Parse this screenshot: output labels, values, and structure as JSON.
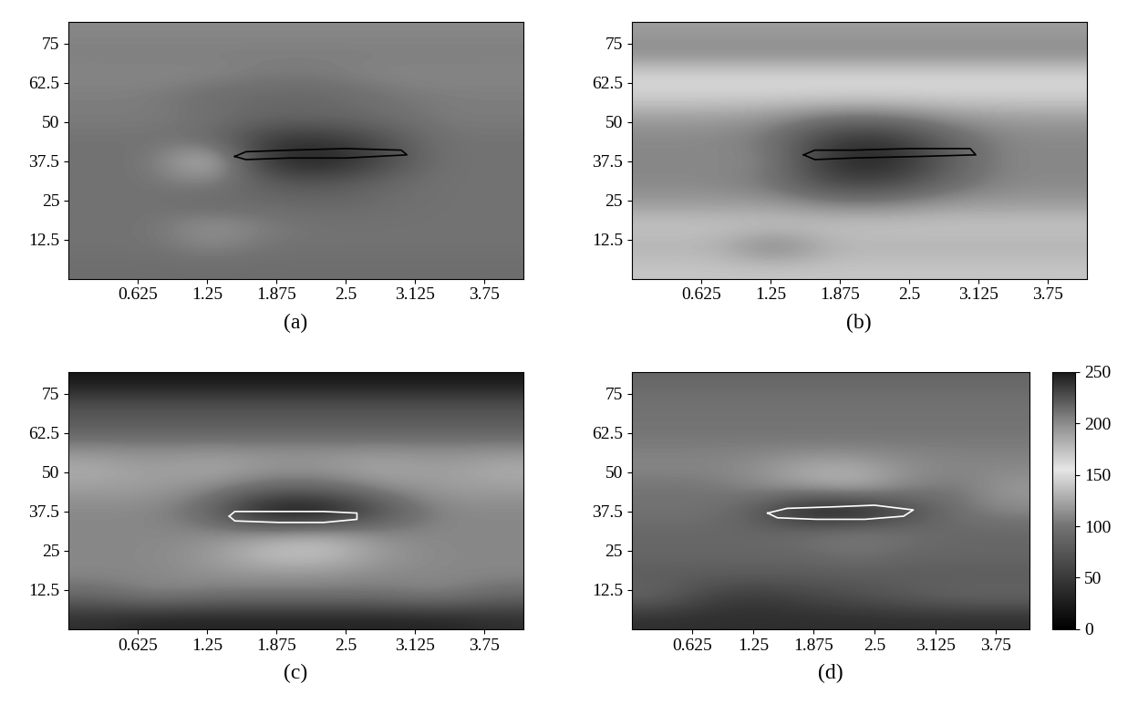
{
  "chart_data": [
    {
      "type": "heatmap",
      "label": "(a)",
      "xlim": [
        0,
        4.1
      ],
      "ylim": [
        0,
        82
      ],
      "xticks": [
        0.625,
        1.25,
        1.875,
        2.5,
        3.125,
        3.75
      ],
      "yticks": [
        12.5,
        25,
        37.5,
        50,
        62.5,
        75
      ],
      "cells": [
        [
          95,
          95,
          95,
          95,
          95,
          95,
          95,
          95
        ],
        [
          100,
          100,
          110,
          100,
          100,
          100,
          100,
          100
        ],
        [
          100,
          100,
          120,
          105,
          100,
          100,
          100,
          100
        ],
        [
          100,
          100,
          90,
          95,
          90,
          95,
          100,
          100
        ],
        [
          100,
          100,
          110,
          80,
          75,
          90,
          100,
          100
        ],
        [
          100,
          100,
          150,
          40,
          25,
          60,
          100,
          100
        ],
        [
          100,
          100,
          95,
          50,
          45,
          70,
          100,
          100
        ],
        [
          105,
          105,
          100,
          90,
          90,
          95,
          105,
          105
        ],
        [
          105,
          105,
          95,
          90,
          90,
          100,
          105,
          105
        ],
        [
          110,
          110,
          110,
          105,
          105,
          110,
          110,
          110
        ],
        [
          105,
          105,
          105,
          105,
          105,
          105,
          105,
          105
        ],
        [
          110,
          110,
          110,
          110,
          110,
          110,
          110,
          110
        ]
      ],
      "contour": {
        "color": "#000000",
        "x": [
          1.5,
          1.6,
          2.0,
          2.5,
          3.0,
          3.05,
          2.5,
          2.0,
          1.6,
          1.5
        ],
        "y": [
          39,
          40.5,
          41,
          41.5,
          41,
          39.5,
          38.5,
          38.5,
          38,
          39
        ]
      }
    },
    {
      "type": "heatmap",
      "label": "(b)",
      "xlim": [
        0,
        4.1
      ],
      "ylim": [
        0,
        82
      ],
      "xticks": [
        0.625,
        1.25,
        1.875,
        2.5,
        3.125,
        3.75
      ],
      "yticks": [
        12.5,
        25,
        37.5,
        50,
        62.5,
        75
      ],
      "cells": [
        [
          140,
          140,
          140,
          140,
          140,
          140,
          140,
          140
        ],
        [
          130,
          130,
          100,
          130,
          130,
          130,
          130,
          130
        ],
        [
          140,
          140,
          140,
          140,
          140,
          140,
          140,
          140
        ],
        [
          120,
          120,
          120,
          110,
          110,
          120,
          120,
          120
        ],
        [
          110,
          110,
          100,
          60,
          60,
          90,
          110,
          110
        ],
        [
          110,
          110,
          110,
          40,
          30,
          80,
          110,
          110
        ],
        [
          110,
          110,
          100,
          50,
          45,
          85,
          110,
          110
        ],
        [
          120,
          120,
          115,
          100,
          100,
          115,
          120,
          120
        ],
        [
          145,
          145,
          145,
          145,
          145,
          145,
          145,
          145
        ],
        [
          150,
          150,
          150,
          150,
          150,
          150,
          150,
          150
        ],
        [
          110,
          110,
          110,
          110,
          110,
          110,
          110,
          110
        ],
        [
          120,
          120,
          120,
          120,
          120,
          120,
          120,
          120
        ]
      ],
      "contour": {
        "color": "#000000",
        "x": [
          1.55,
          1.65,
          2.0,
          2.5,
          3.05,
          3.1,
          2.6,
          2.0,
          1.65,
          1.55
        ],
        "y": [
          39.5,
          41,
          41,
          41.5,
          41.5,
          39.5,
          39,
          38.5,
          38,
          39.5
        ]
      }
    },
    {
      "type": "heatmap",
      "label": "(c)",
      "xlim": [
        0,
        4.1
      ],
      "ylim": [
        0,
        82
      ],
      "xticks": [
        0.625,
        1.25,
        1.875,
        2.5,
        3.125,
        3.75
      ],
      "yticks": [
        12.5,
        25,
        37.5,
        50,
        62.5,
        75
      ],
      "cells": [
        [
          40,
          30,
          30,
          30,
          30,
          30,
          30,
          40
        ],
        [
          90,
          110,
          100,
          100,
          100,
          100,
          110,
          90
        ],
        [
          110,
          110,
          115,
          115,
          115,
          110,
          110,
          110
        ],
        [
          110,
          110,
          120,
          140,
          140,
          120,
          110,
          110
        ],
        [
          110,
          110,
          110,
          120,
          130,
          110,
          110,
          110
        ],
        [
          110,
          110,
          90,
          10,
          10,
          70,
          110,
          110
        ],
        [
          120,
          120,
          110,
          90,
          90,
          110,
          120,
          120
        ],
        [
          130,
          120,
          130,
          120,
          120,
          130,
          120,
          130
        ],
        [
          110,
          110,
          110,
          110,
          110,
          110,
          110,
          110
        ],
        [
          80,
          80,
          80,
          80,
          80,
          80,
          80,
          80
        ],
        [
          70,
          70,
          70,
          70,
          70,
          70,
          70,
          70
        ],
        [
          20,
          20,
          20,
          20,
          20,
          20,
          20,
          20
        ]
      ],
      "contour": {
        "color": "#ffffff",
        "x": [
          1.45,
          1.5,
          1.9,
          2.3,
          2.6,
          2.6,
          2.3,
          1.9,
          1.5,
          1.45
        ],
        "y": [
          36,
          37.5,
          37.5,
          37.5,
          37,
          35,
          34,
          34,
          34.5,
          36
        ]
      }
    },
    {
      "type": "heatmap",
      "label": "(d)",
      "xlim": [
        0,
        4.1
      ],
      "ylim": [
        0,
        82
      ],
      "xticks": [
        0.625,
        1.25,
        1.875,
        2.5,
        3.125,
        3.75
      ],
      "yticks": [
        12.5,
        25,
        37.5,
        50,
        62.5,
        75
      ],
      "cells": [
        [
          40,
          40,
          40,
          40,
          40,
          40,
          40,
          40
        ],
        [
          90,
          60,
          50,
          60,
          70,
          80,
          90,
          90
        ],
        [
          80,
          80,
          80,
          80,
          80,
          80,
          80,
          80
        ],
        [
          90,
          90,
          90,
          90,
          100,
          90,
          90,
          90
        ],
        [
          90,
          90,
          90,
          100,
          110,
          100,
          90,
          90
        ],
        [
          100,
          100,
          80,
          20,
          20,
          60,
          100,
          110
        ],
        [
          100,
          100,
          110,
          120,
          130,
          110,
          100,
          120
        ],
        [
          110,
          110,
          115,
          130,
          130,
          115,
          110,
          110
        ],
        [
          105,
          105,
          105,
          105,
          105,
          105,
          105,
          105
        ],
        [
          100,
          100,
          100,
          100,
          100,
          100,
          100,
          100
        ],
        [
          100,
          100,
          100,
          100,
          100,
          100,
          100,
          100
        ],
        [
          90,
          90,
          90,
          90,
          90,
          90,
          90,
          90
        ]
      ],
      "contour": {
        "color": "#ffffff",
        "x": [
          1.4,
          1.6,
          2.1,
          2.5,
          2.9,
          2.8,
          2.4,
          1.9,
          1.5,
          1.4
        ],
        "y": [
          37,
          38.5,
          39,
          39.5,
          38,
          36,
          35,
          35,
          35.5,
          37
        ]
      },
      "colorbar_range": [
        0,
        250
      ],
      "colorbar_ticks": [
        0,
        50,
        100,
        150,
        200,
        250
      ]
    }
  ]
}
